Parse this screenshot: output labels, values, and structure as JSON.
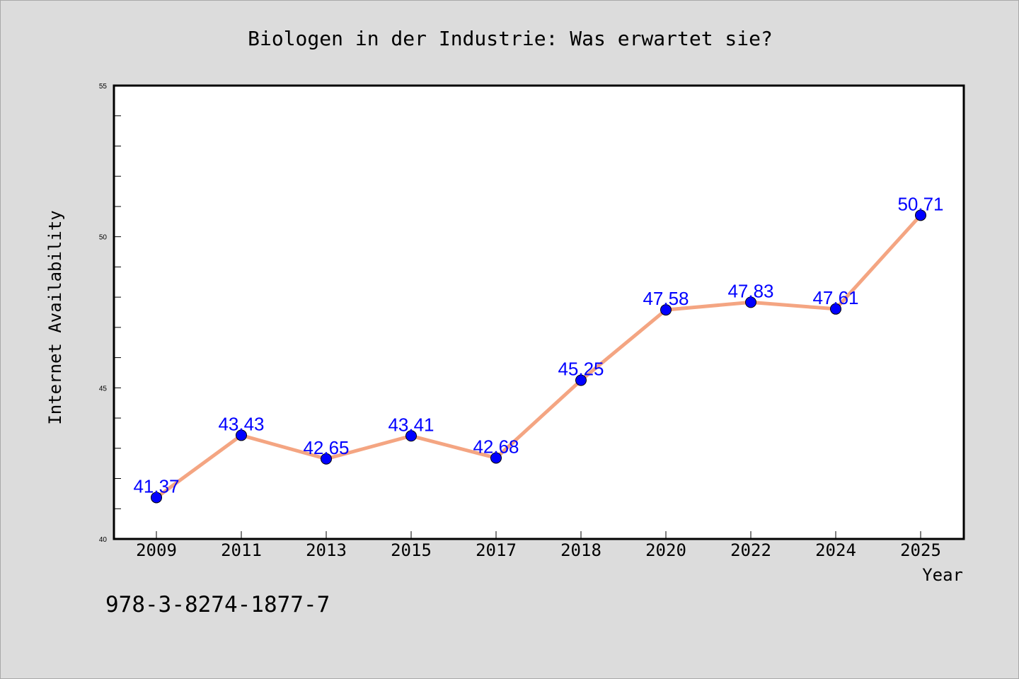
{
  "footer": {
    "identifier": "978-3-8274-1877-7"
  },
  "colors": {
    "background": "#dcdcdc",
    "plot_area": "#ffffff",
    "line": "#f4a582",
    "marker": "#0000ff",
    "data_label": "#0000ff",
    "text": "#000000"
  },
  "chart_data": {
    "type": "line",
    "title": "Biologen in der Industrie: Was erwartet sie?",
    "xlabel": "Year",
    "ylabel": "Internet Availability",
    "categories": [
      "2009",
      "2011",
      "2013",
      "2015",
      "2017",
      "2018",
      "2020",
      "2022",
      "2024",
      "2025"
    ],
    "series": [
      {
        "values": [
          41.37,
          43.43,
          42.65,
          43.41,
          42.68,
          45.25,
          47.58,
          47.83,
          47.61,
          50.71
        ],
        "data_labels": [
          "41.37",
          "43.43",
          "42.65",
          "43.41",
          "42.68",
          "45.25",
          "47.58",
          "47.83",
          "47.61",
          "50.71"
        ]
      }
    ],
    "ylim": [
      40,
      55
    ],
    "yticks": [
      "40",
      "45",
      "50",
      "55"
    ],
    "grid": false,
    "legend": "none"
  }
}
